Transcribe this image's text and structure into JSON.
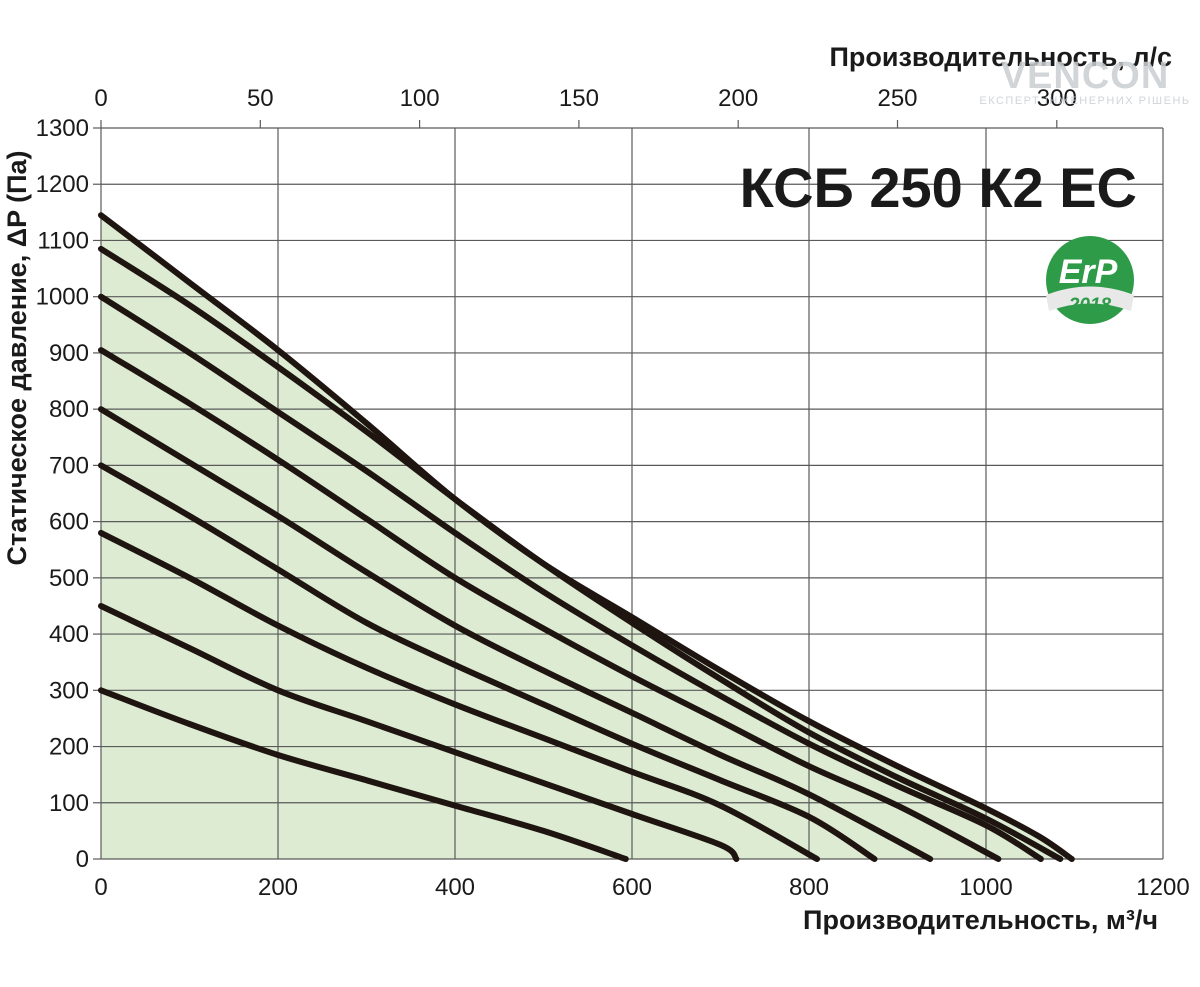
{
  "chart_data": {
    "type": "line",
    "title": "КСБ 250 К2 ЕС",
    "xlabel": "Производительность, м³/ч",
    "ylabel": "Статическое давление, ΔP (Па)",
    "x2label": "Производительность, л/с",
    "xlim": [
      0,
      1200
    ],
    "ylim": [
      0,
      1300
    ],
    "x_ticks": [
      "0",
      "200",
      "400",
      "600",
      "800",
      "1000",
      "1200"
    ],
    "y_ticks": [
      "0",
      "100",
      "200",
      "300",
      "400",
      "500",
      "600",
      "700",
      "800",
      "900",
      "1000",
      "1100",
      "1200",
      "1300"
    ],
    "x2_ticks": [
      "0",
      "50",
      "100",
      "150",
      "200",
      "250",
      "300"
    ],
    "x2_tick_values_m3h": [
      0,
      180,
      360,
      540,
      720,
      900,
      1080
    ],
    "grid": true,
    "fill_color": "#dcebd2",
    "curve_color": "#1e1410",
    "series": [
      {
        "x": [
          0,
          100,
          200,
          300,
          400,
          500,
          593
        ],
        "y": [
          300,
          240,
          185,
          140,
          95,
          50,
          0
        ]
      },
      {
        "x": [
          0,
          100,
          200,
          300,
          400,
          500,
          600,
          700,
          718
        ],
        "y": [
          450,
          375,
          300,
          245,
          190,
          135,
          80,
          25,
          0
        ]
      },
      {
        "x": [
          0,
          100,
          200,
          300,
          400,
          500,
          600,
          700,
          809
        ],
        "y": [
          580,
          500,
          415,
          340,
          275,
          215,
          155,
          95,
          0
        ]
      },
      {
        "x": [
          0,
          100,
          200,
          300,
          400,
          500,
          600,
          700,
          800,
          874
        ],
        "y": [
          700,
          610,
          515,
          420,
          345,
          275,
          205,
          140,
          75,
          0
        ]
      },
      {
        "x": [
          0,
          100,
          200,
          300,
          400,
          500,
          600,
          700,
          800,
          937
        ],
        "y": [
          800,
          705,
          610,
          510,
          415,
          335,
          260,
          185,
          115,
          0
        ]
      },
      {
        "x": [
          0,
          100,
          200,
          300,
          400,
          500,
          600,
          700,
          800,
          900,
          1014
        ],
        "y": [
          905,
          810,
          710,
          605,
          500,
          410,
          325,
          245,
          165,
          95,
          0
        ]
      },
      {
        "x": [
          0,
          100,
          200,
          300,
          400,
          500,
          600,
          700,
          800,
          900,
          1000,
          1062
        ],
        "y": [
          1000,
          900,
          795,
          690,
          580,
          475,
          380,
          290,
          205,
          130,
          60,
          0
        ]
      },
      {
        "x": [
          0,
          100,
          200,
          300,
          400,
          500,
          600,
          700,
          800,
          900,
          1000,
          1084
        ],
        "y": [
          1085,
          985,
          875,
          760,
          640,
          525,
          420,
          320,
          225,
          145,
          72,
          0
        ]
      },
      {
        "x": [
          0,
          100,
          200,
          300,
          400,
          500,
          600,
          700,
          800,
          900,
          1000,
          1060,
          1097
        ],
        "y": [
          1145,
          1025,
          905,
          775,
          640,
          525,
          430,
          335,
          245,
          165,
          90,
          40,
          0
        ]
      }
    ]
  },
  "badge": {
    "text": "ErP",
    "year": "2018",
    "colors": {
      "circle": "#2e9b49",
      "band": "#e8e8e8"
    }
  },
  "watermark": {
    "text": "VENCON",
    "subtitle": "ЕКСПЕРТ ІНЖЕНЕРНИХ РІШЕНЬ"
  }
}
